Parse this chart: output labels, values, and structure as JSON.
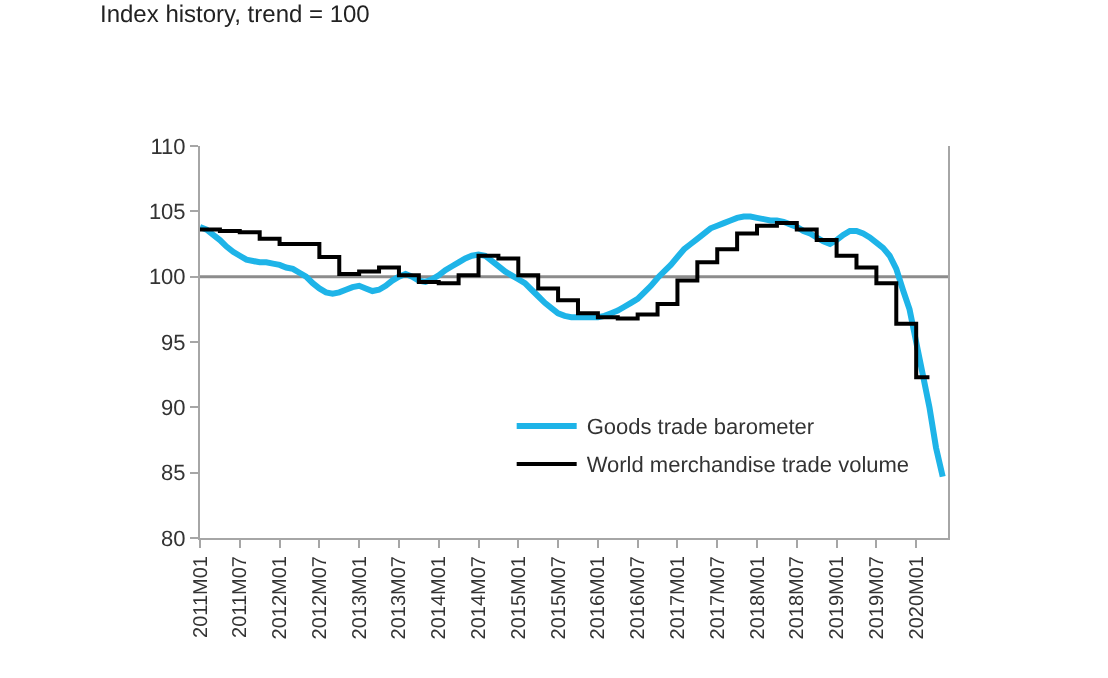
{
  "chart_data": {
    "type": "line",
    "title": "Index history, trend = 100",
    "categories": [
      "2011M01",
      null,
      null,
      null,
      null,
      null,
      "2011M07",
      null,
      null,
      null,
      null,
      null,
      "2012M01",
      null,
      null,
      null,
      null,
      null,
      "2012M07",
      null,
      null,
      null,
      null,
      null,
      "2013M01",
      null,
      null,
      null,
      null,
      null,
      "2013M07",
      null,
      null,
      null,
      null,
      null,
      "2014M01",
      null,
      null,
      null,
      null,
      null,
      "2014M07",
      null,
      null,
      null,
      null,
      null,
      "2015M01",
      null,
      null,
      null,
      null,
      null,
      "2015M07",
      null,
      null,
      null,
      null,
      null,
      "2016M01",
      null,
      null,
      null,
      null,
      null,
      "2016M07",
      null,
      null,
      null,
      null,
      null,
      "2017M01",
      null,
      null,
      null,
      null,
      null,
      "2017M07",
      null,
      null,
      null,
      null,
      null,
      "2018M01",
      null,
      null,
      null,
      null,
      null,
      "2018M07",
      null,
      null,
      null,
      null,
      null,
      "2019M01",
      null,
      null,
      null,
      null,
      null,
      "2019M07",
      null,
      null,
      null,
      null,
      null,
      "2020M01",
      null,
      null,
      null,
      null
    ],
    "series": [
      {
        "name": "Goods trade barometer",
        "color": "#1eb4e8",
        "values": [
          103.8,
          103.6,
          103.2,
          102.8,
          102.3,
          101.9,
          101.6,
          101.3,
          101.2,
          101.1,
          101.1,
          101.0,
          100.9,
          100.7,
          100.6,
          100.3,
          100.0,
          99.5,
          99.1,
          98.8,
          98.7,
          98.8,
          99.0,
          99.2,
          99.3,
          99.1,
          98.9,
          99.0,
          99.3,
          99.7,
          100.0,
          100.2,
          100.0,
          99.7,
          99.6,
          99.8,
          100.1,
          100.5,
          100.8,
          101.1,
          101.4,
          101.6,
          101.7,
          101.6,
          101.2,
          100.8,
          100.4,
          100.1,
          99.8,
          99.5,
          99.0,
          98.5,
          98.0,
          97.6,
          97.2,
          97.0,
          96.9,
          96.9,
          96.9,
          96.9,
          96.9,
          97.0,
          97.2,
          97.4,
          97.7,
          98.0,
          98.3,
          98.8,
          99.3,
          99.9,
          100.4,
          100.9,
          101.5,
          102.1,
          102.5,
          102.9,
          103.3,
          103.7,
          103.9,
          104.1,
          104.3,
          104.5,
          104.6,
          104.6,
          104.5,
          104.4,
          104.3,
          104.3,
          104.2,
          104.0,
          103.8,
          103.5,
          103.3,
          103.0,
          102.7,
          102.5,
          102.8,
          103.2,
          103.5,
          103.5,
          103.3,
          103.0,
          102.6,
          102.2,
          101.6,
          100.6,
          99.0,
          97.5,
          95.0,
          92.5,
          90.0,
          86.9,
          84.7
        ]
      },
      {
        "name": "World merchandise trade volume",
        "color": "#000000",
        "type": "step",
        "values": [
          103.6,
          103.6,
          103.6,
          103.5,
          103.5,
          103.5,
          103.4,
          103.4,
          103.4,
          102.9,
          102.9,
          102.9,
          102.5,
          102.5,
          102.5,
          102.5,
          102.5,
          102.5,
          101.5,
          101.5,
          101.5,
          100.2,
          100.2,
          100.2,
          100.4,
          100.4,
          100.4,
          100.7,
          100.7,
          100.7,
          100.1,
          100.1,
          100.1,
          99.6,
          99.6,
          99.6,
          99.5,
          99.5,
          99.5,
          100.1,
          100.1,
          100.1,
          101.6,
          101.6,
          101.6,
          101.4,
          101.4,
          101.4,
          100.1,
          100.1,
          100.1,
          99.1,
          99.1,
          99.1,
          98.2,
          98.2,
          98.2,
          97.2,
          97.2,
          97.2,
          96.9,
          96.9,
          96.9,
          96.8,
          96.8,
          96.8,
          97.1,
          97.1,
          97.1,
          97.9,
          97.9,
          97.9,
          99.7,
          99.7,
          99.7,
          101.1,
          101.1,
          101.1,
          102.1,
          102.1,
          102.1,
          103.3,
          103.3,
          103.3,
          103.9,
          103.9,
          103.9,
          104.1,
          104.1,
          104.1,
          103.6,
          103.6,
          103.6,
          102.8,
          102.8,
          102.8,
          101.6,
          101.6,
          101.6,
          100.7,
          100.7,
          100.7,
          99.5,
          99.5,
          99.5,
          96.4,
          96.4,
          96.4,
          92.3,
          92.3,
          92.3,
          null,
          null
        ]
      }
    ],
    "ylim": [
      80,
      110
    ],
    "yticks": [
      80,
      85,
      90,
      95,
      100,
      105,
      110
    ],
    "ref_lines": [
      {
        "axis": "y",
        "value": 100,
        "color": "#8c8c8c"
      }
    ],
    "legend": "bottom right",
    "grid": false,
    "marker": "none",
    "line_style": "solid"
  }
}
